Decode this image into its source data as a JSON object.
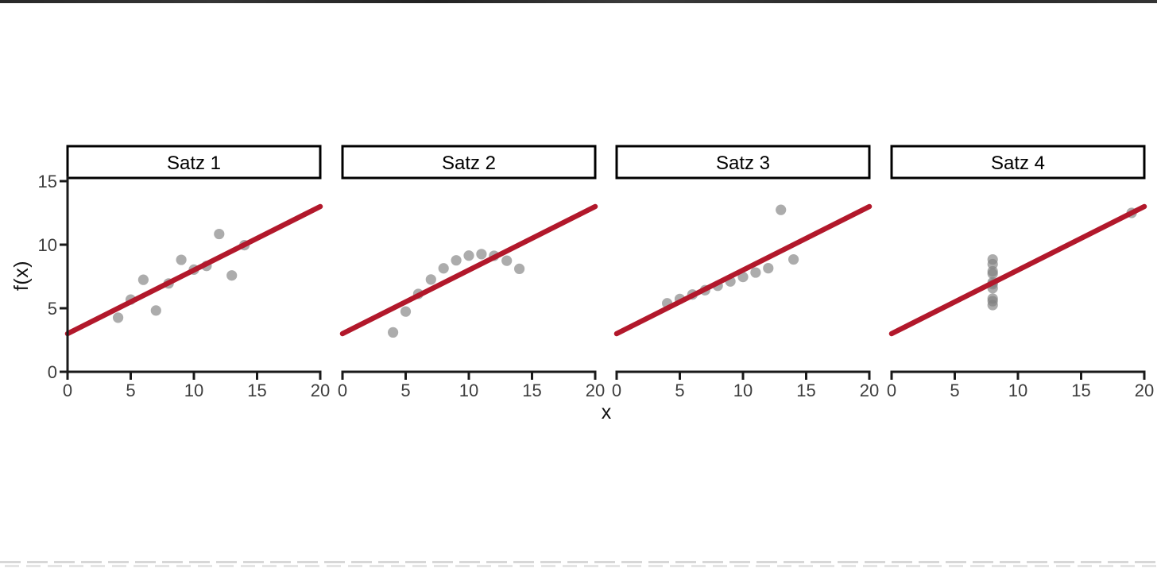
{
  "figure": {
    "kind": "faceted scatter plot (Anscombe quartet)",
    "background": "#ffffff"
  },
  "chart_data": {
    "type": "scatter",
    "title": "",
    "xlabel": "x",
    "ylabel": "f(x)",
    "xlim": [
      0,
      20
    ],
    "ylim": [
      0,
      15
    ],
    "xticks": [
      0,
      5,
      10,
      15,
      20
    ],
    "yticks": [
      0,
      5,
      10,
      15
    ],
    "grid": false,
    "legend": "none",
    "facets": [
      {
        "label": "Satz 1",
        "points": [
          [
            10,
            8.04
          ],
          [
            8,
            6.95
          ],
          [
            13,
            7.58
          ],
          [
            9,
            8.81
          ],
          [
            11,
            8.33
          ],
          [
            14,
            9.96
          ],
          [
            6,
            7.24
          ],
          [
            4,
            4.26
          ],
          [
            12,
            10.84
          ],
          [
            7,
            4.82
          ],
          [
            5,
            5.68
          ]
        ]
      },
      {
        "label": "Satz 2",
        "points": [
          [
            10,
            9.14
          ],
          [
            8,
            8.14
          ],
          [
            13,
            8.74
          ],
          [
            9,
            8.77
          ],
          [
            11,
            9.26
          ],
          [
            14,
            8.1
          ],
          [
            6,
            6.13
          ],
          [
            4,
            3.1
          ],
          [
            12,
            9.13
          ],
          [
            7,
            7.26
          ],
          [
            5,
            4.74
          ]
        ]
      },
      {
        "label": "Satz 3",
        "points": [
          [
            10,
            7.46
          ],
          [
            8,
            6.77
          ],
          [
            13,
            12.74
          ],
          [
            9,
            7.11
          ],
          [
            11,
            7.81
          ],
          [
            14,
            8.84
          ],
          [
            6,
            6.08
          ],
          [
            4,
            5.39
          ],
          [
            12,
            8.15
          ],
          [
            7,
            6.42
          ],
          [
            5,
            5.73
          ]
        ]
      },
      {
        "label": "Satz 4",
        "points": [
          [
            8,
            6.58
          ],
          [
            8,
            5.76
          ],
          [
            8,
            7.71
          ],
          [
            8,
            8.84
          ],
          [
            8,
            8.47
          ],
          [
            8,
            7.04
          ],
          [
            8,
            5.25
          ],
          [
            19,
            12.5
          ],
          [
            8,
            5.56
          ],
          [
            8,
            7.91
          ],
          [
            8,
            6.89
          ]
        ]
      }
    ],
    "regression_line": {
      "slope": 0.5,
      "intercept": 3,
      "x_start": 0,
      "x_end": 20
    },
    "colors": {
      "line": "#B2182B",
      "point": "#7F7F7F",
      "point_opacity": 0.65,
      "axis": "#1A1A1A",
      "tick_label": "#3D3D3D",
      "strip_border": "#000000",
      "strip_background": "#FFFFFF",
      "strip_text": "#000000"
    }
  }
}
